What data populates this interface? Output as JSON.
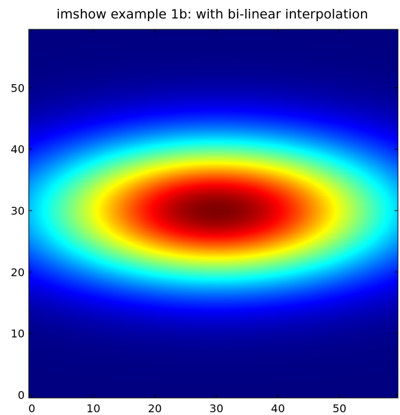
{
  "chart_data": {
    "type": "heatmap",
    "title": "imshow example 1b: with bi-linear interpolation",
    "xlabel": "",
    "ylabel": "",
    "colormap": "jet",
    "interpolation": "bilinear",
    "grid": false,
    "legend": "none",
    "image_shape": [
      60,
      60
    ],
    "xlim": [
      -0.5,
      59.5
    ],
    "ylim": [
      59.5,
      -0.5
    ],
    "function": "exp(-((x-30)^2/20^2 + (y-30)^2/8^2)/2)",
    "center": {
      "x": 30,
      "y": 30
    },
    "peak_value": 1.0,
    "x_ticks": [
      0,
      10,
      20,
      30,
      40,
      50
    ],
    "y_ticks": [
      0,
      10,
      20,
      30,
      40,
      50
    ]
  }
}
